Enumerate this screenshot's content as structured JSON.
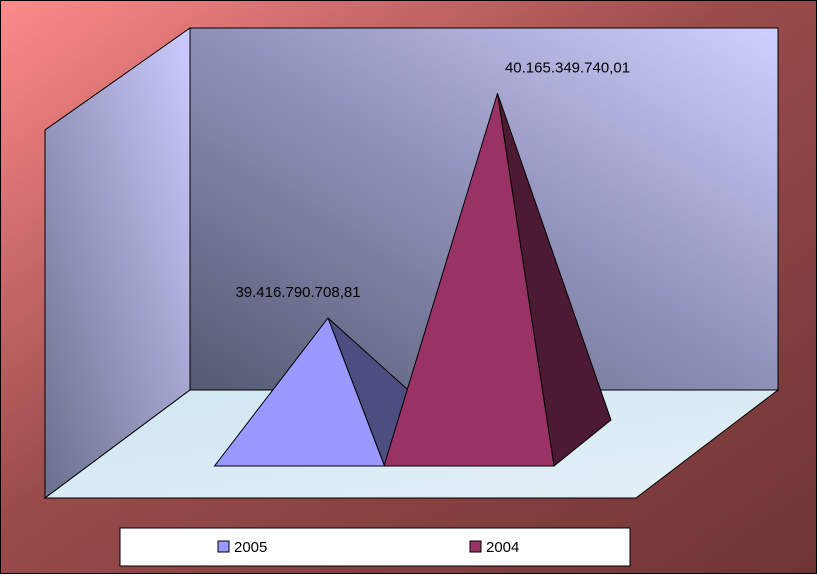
{
  "chart_data": {
    "type": "pyramid",
    "categories": [
      null
    ],
    "series": [
      {
        "name": "2005",
        "color": "#9999ff",
        "values": [
          39416790708.81
        ],
        "value_labels": [
          "39.416.790.708,81"
        ]
      },
      {
        "name": "2004",
        "color": "#993366",
        "values": [
          40165349740.01
        ],
        "value_labels": [
          "40.165.349.740,01"
        ]
      }
    ],
    "ylim": [
      39000000000,
      40300000000
    ],
    "legend": "bottom"
  }
}
